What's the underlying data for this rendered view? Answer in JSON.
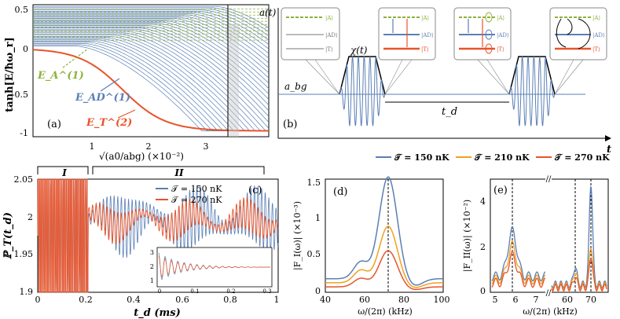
{
  "panel_a": {
    "label": "(a)",
    "ylabel": "tanh[E/ħω_r]",
    "xlabel": "√(a0/abg) (×10⁻²)",
    "yticks": [
      "0.5",
      "0",
      "-0.5",
      "-1"
    ],
    "xticks": [
      "1",
      "2",
      "3"
    ],
    "annot_A": "E_A^(1)",
    "annot_AD": "E_AD^(1)",
    "annot_T": "E_T^(2)"
  },
  "panel_b": {
    "label": "(b)",
    "ylabel": "a(t)",
    "xlabel": "t",
    "chi": "χ(t)",
    "abg": "a_bg",
    "td": "t_d",
    "states": [
      "|A⟩",
      "|AD⟩",
      "|T⟩"
    ]
  },
  "legend_top": [
    "𝒯 = 150 nK",
    "𝒯 = 210 nK",
    "𝒯 = 270 nK"
  ],
  "panel_c": {
    "label": "(c)",
    "ylabel": "ℙ_T(t_d)",
    "xlabel": "t_d (ms)",
    "region1": "I",
    "region2": "II",
    "yticks": [
      "2.05",
      "2",
      "1.95",
      "1.9"
    ],
    "xticks": [
      "0",
      "0.2",
      "0.4",
      "0.6",
      "0.8",
      "1"
    ],
    "legend": [
      "𝒯 = 150 nK",
      "𝒯 = 270 nK"
    ],
    "inset_yticks": [
      "3",
      "2",
      "1"
    ],
    "inset_xticks": [
      "0",
      "0.1",
      "0.2",
      "0.3"
    ]
  },
  "panel_d": {
    "label": "(d)",
    "ylabel": "|F_I(ω)| (×10⁻³)",
    "xlabel": "ω/(2π) (kHz)",
    "yticks": [
      "1.5",
      "1",
      "0.5",
      "0"
    ],
    "xticks": [
      "40",
      "60",
      "80",
      "100"
    ]
  },
  "panel_e": {
    "label": "(e)",
    "ylabel": "|F_II(ω)| (×10⁻²)",
    "xlabel": "ω/(2π) (kHz)",
    "yticks": [
      "4",
      "2",
      "0"
    ],
    "xticks": [
      "5",
      "6",
      "7",
      "60",
      "70"
    ]
  },
  "colors": {
    "blue": "#5b7fb5",
    "orange": "#f0a020",
    "red": "#e8532a",
    "green": "#8db23a"
  },
  "chart_data": [
    {
      "type": "line",
      "xlabel": "t_d (ms)",
      "ylabel": "ℙ_T(t_d)",
      "ylim": [
        1.9,
        2.05
      ],
      "xlim": [
        0,
        1
      ],
      "series": [
        {
          "name": "𝒯 = 150 nK"
        },
        {
          "name": "𝒯 = 270 nK"
        }
      ]
    },
    {
      "type": "line",
      "xlabel": "ω/(2π) (kHz)",
      "xlim": [
        40,
        100
      ],
      "ylim": [
        0,
        1.5
      ],
      "peak_x": 72,
      "series": [
        {
          "name": "𝒯 = 150 nK",
          "peak": 1.35
        },
        {
          "name": "𝒯 = 210 nK",
          "peak": 0.75
        },
        {
          "name": "𝒯 = 270 nK",
          "peak": 0.48
        }
      ]
    },
    {
      "type": "line",
      "xlabel": "ω/(2π) (kHz)",
      "ylim": [
        0,
        5
      ],
      "series": [
        {
          "name": "𝒯 = 150 nK",
          "peaks": [
            2.0,
            4.5
          ]
        },
        {
          "name": "𝒯 = 210 nK",
          "peaks": [
            1.5,
            1.8
          ]
        },
        {
          "name": "𝒯 = 270 nK",
          "peaks": [
            1.2,
            1.4
          ]
        }
      ]
    }
  ]
}
